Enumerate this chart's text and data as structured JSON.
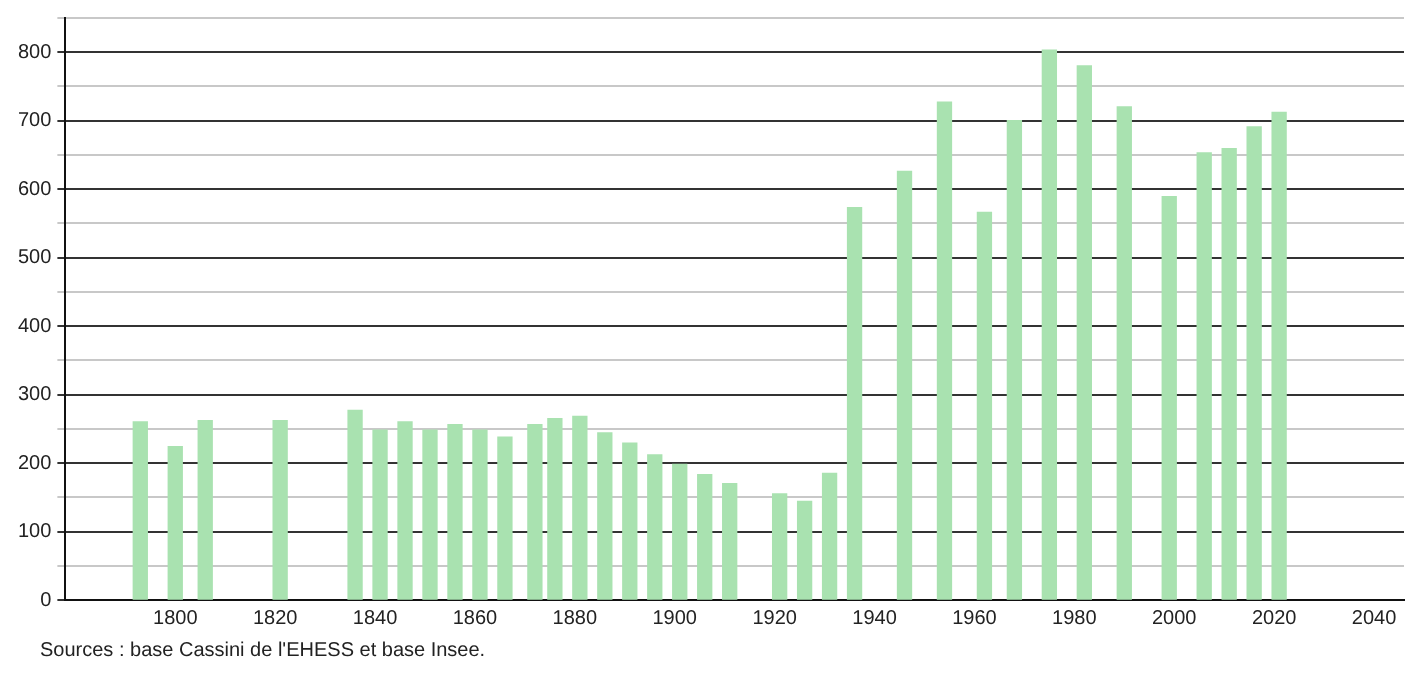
{
  "chart_data": {
    "type": "bar",
    "x": [
      1793,
      1800,
      1806,
      1821,
      1836,
      1841,
      1846,
      1851,
      1856,
      1861,
      1866,
      1872,
      1876,
      1881,
      1886,
      1891,
      1896,
      1901,
      1906,
      1911,
      1921,
      1926,
      1931,
      1936,
      1946,
      1954,
      1962,
      1968,
      1975,
      1982,
      1990,
      1999,
      2006,
      2011,
      2016,
      2021
    ],
    "values": [
      260,
      224,
      262,
      262,
      277,
      248,
      260,
      248,
      256,
      248,
      238,
      256,
      265,
      268,
      244,
      229,
      212,
      198,
      183,
      170,
      155,
      144,
      185,
      573,
      626,
      727,
      566,
      700,
      803,
      780,
      720,
      589,
      653,
      659,
      691,
      712
    ],
    "color": "#a9e2b0",
    "xlim": [
      1778,
      2046
    ],
    "xticks": [
      1800,
      1820,
      1840,
      1860,
      1880,
      1900,
      1920,
      1940,
      1960,
      1980,
      2000,
      2020,
      2040
    ],
    "ylim": [
      0,
      850
    ],
    "yticks": [
      0,
      {
        "value": 50,
        "label": null
      },
      100,
      {
        "value": 150,
        "label": null
      },
      200,
      {
        "value": 250,
        "label": null
      },
      300,
      {
        "value": 350,
        "label": null
      },
      400,
      {
        "value": 450,
        "label": null
      },
      500,
      {
        "value": 550,
        "label": null
      },
      600,
      {
        "value": 650,
        "label": null
      },
      700,
      {
        "value": 750,
        "label": null
      },
      800,
      {
        "value": 850,
        "label": null
      }
    ],
    "grid": "y",
    "annotations": [
      "Sources : base Cassini de l'EHESS et base Insee."
    ]
  }
}
